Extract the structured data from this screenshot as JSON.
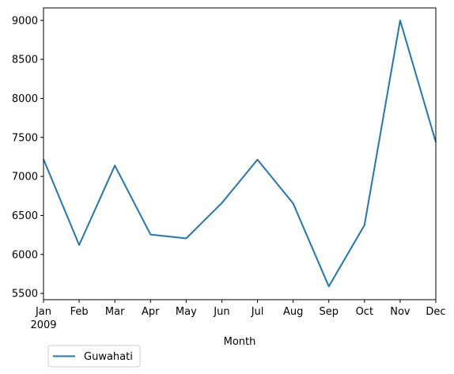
{
  "chart_data": {
    "type": "line",
    "categories": [
      "Jan",
      "Feb",
      "Mar",
      "Apr",
      "May",
      "Jun",
      "Jul",
      "Aug",
      "Sep",
      "Oct",
      "Nov",
      "Dec"
    ],
    "year_label": "2009",
    "series": [
      {
        "name": "Guwahati",
        "color": "#1f77b4",
        "values": [
          7220,
          6120,
          7140,
          6255,
          6205,
          6660,
          7215,
          6655,
          5590,
          6375,
          9000,
          7440
        ]
      }
    ],
    "xlabel": "Month",
    "ylabel": "",
    "ylim": [
      5420,
      9160
    ],
    "yticks": [
      5500,
      6000,
      6500,
      7000,
      7500,
      8000,
      8500,
      9000
    ],
    "grid": false,
    "legend_position": "bottom-left, below axes"
  }
}
